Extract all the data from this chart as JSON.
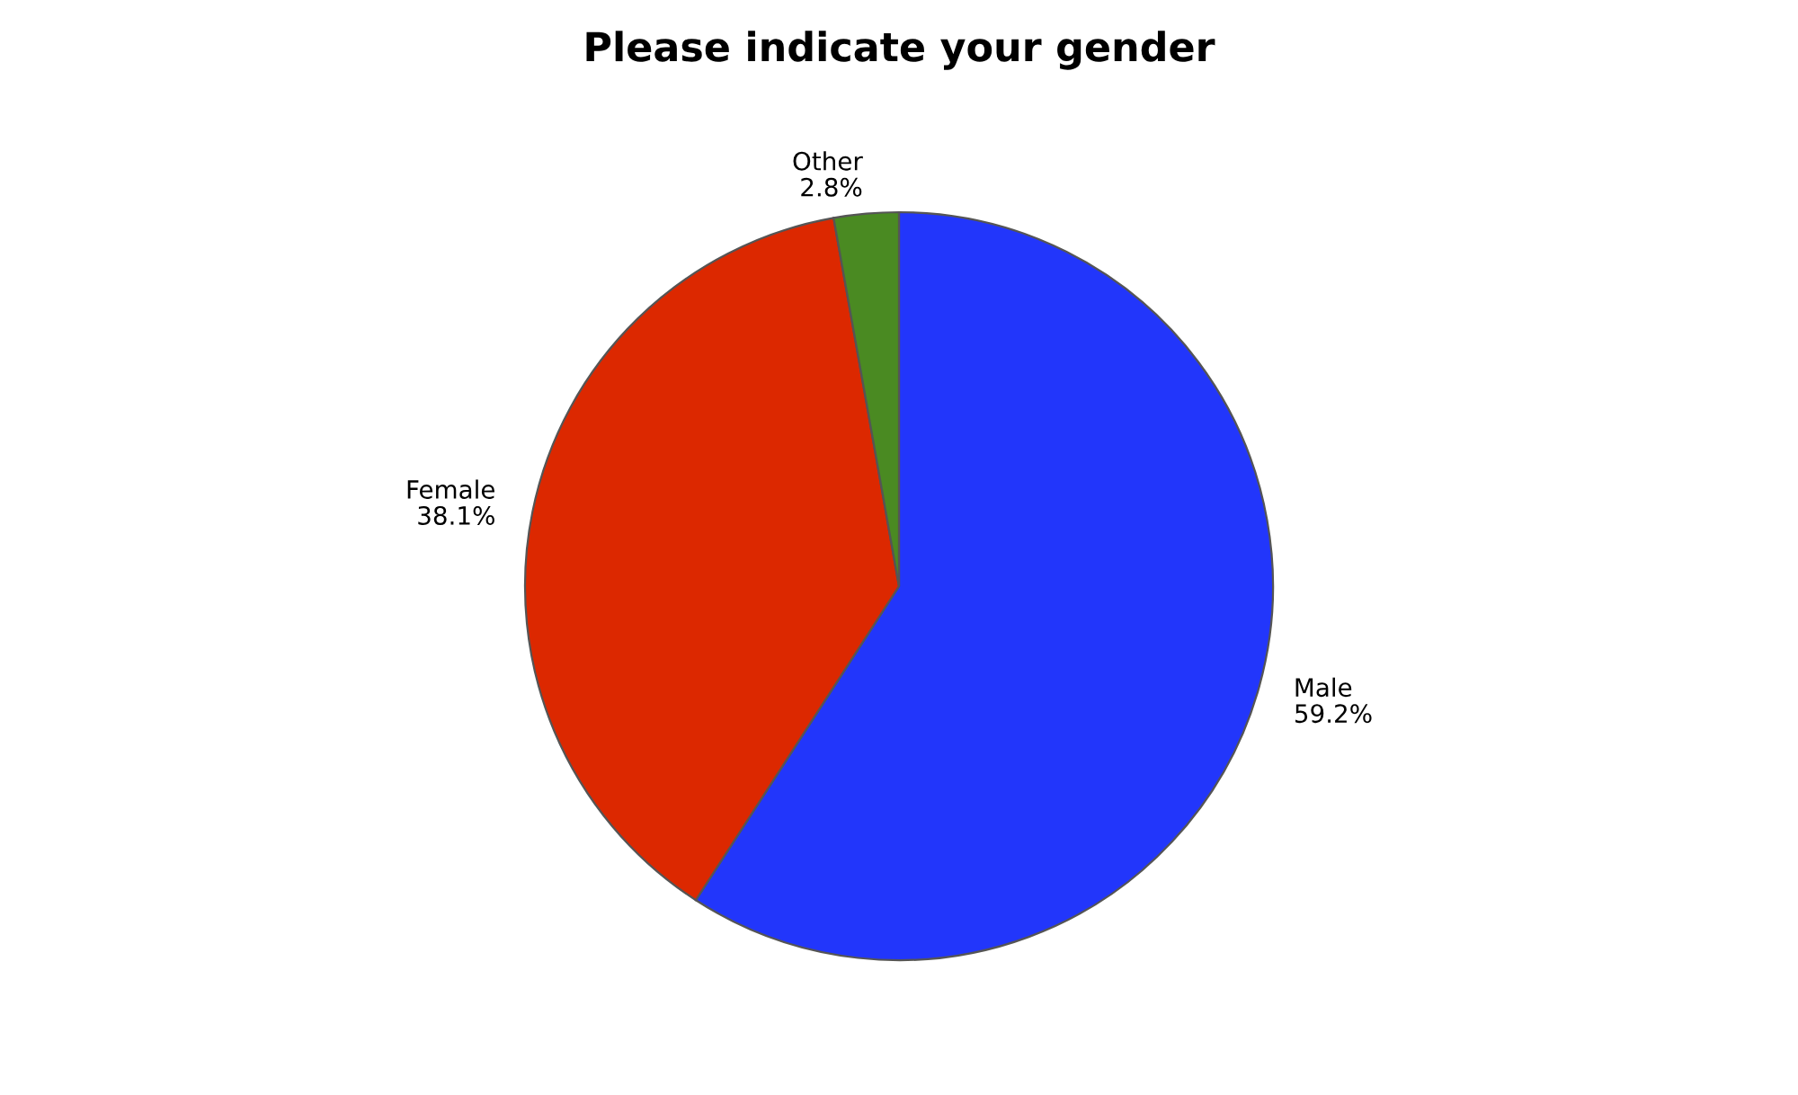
{
  "chart_data": {
    "type": "pie",
    "title": "Please indicate your gender",
    "categories": [
      "Male",
      "Female",
      "Other"
    ],
    "values": [
      59.2,
      38.1,
      2.8
    ],
    "value_labels": [
      "59.2%",
      "38.1%",
      "2.8%"
    ],
    "colors": [
      "#2236fb",
      "#dc2800",
      "#4a8a22"
    ],
    "legend": false
  }
}
